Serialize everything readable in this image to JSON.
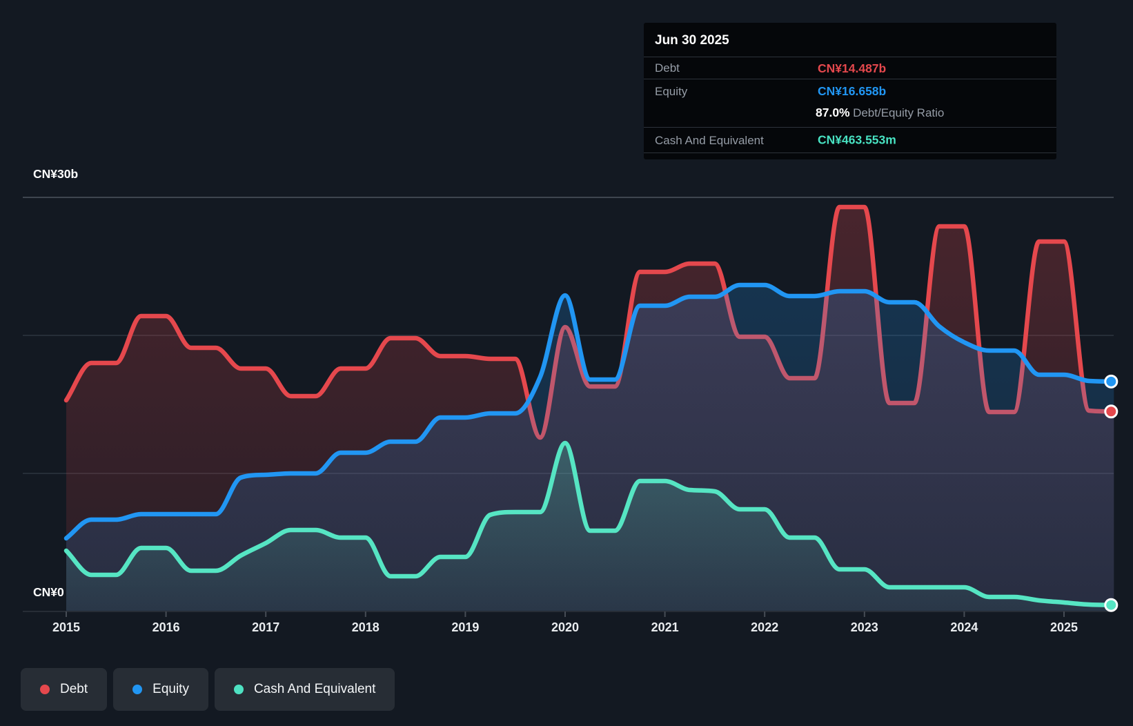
{
  "tooltip": {
    "date": "Jun 30 2025",
    "debt_label": "Debt",
    "debt_value": "CN¥14.487b",
    "equity_label": "Equity",
    "equity_value": "CN¥16.658b",
    "ratio_value": "87.0%",
    "ratio_label": "Debt/Equity Ratio",
    "cash_label": "Cash And Equivalent",
    "cash_value": "CN¥463.553m"
  },
  "y_axis": {
    "top_label": "CN¥30b",
    "bottom_label": "CN¥0",
    "unit": "CN¥ billions",
    "gridline_values": [
      30,
      20,
      10
    ]
  },
  "x_axis": {
    "ticks": [
      2015,
      2016,
      2017,
      2018,
      2019,
      2020,
      2021,
      2022,
      2023,
      2024,
      2025
    ]
  },
  "legend": [
    {
      "label": "Debt",
      "color": "#e5484d"
    },
    {
      "label": "Equity",
      "color": "#2196f3"
    },
    {
      "label": "Cash And Equivalent",
      "color": "#4ee1c2"
    }
  ],
  "colors": {
    "background": "#131922",
    "grid_major": "#333b45",
    "grid_top": "#4d545e",
    "axis_line": "#272d36",
    "tick": "#464c55",
    "x_label": "#e9ecef",
    "debt_line": "#e5484d",
    "equity_line": "#2196f3",
    "cash_line": "#56e5c3",
    "debt_value_text": "#e5484d",
    "equity_value_text": "#2196f3",
    "cash_value_text": "#48e2c2"
  },
  "chart_data": {
    "type": "area",
    "title": "Debt to Equity History (CN¥ billions, quarterly)",
    "x_start": 2015.0,
    "x_step": 0.25,
    "x_end": 2025.5,
    "last_point_date": "Jun 30 2025",
    "ylim": [
      0,
      30
    ],
    "grid": true,
    "legend_position": "bottom-left",
    "series": [
      {
        "name": "Debt",
        "color": "#e5484d",
        "last_value_label": "CN¥14.487b",
        "values": [
          15.3,
          18.0,
          18.0,
          21.4,
          21.4,
          19.1,
          19.1,
          17.6,
          17.6,
          15.6,
          15.6,
          17.6,
          17.6,
          19.8,
          19.8,
          18.5,
          18.5,
          18.3,
          18.3,
          12.6,
          20.6,
          16.3,
          16.3,
          24.6,
          24.6,
          25.2,
          25.2,
          19.9,
          19.9,
          16.9,
          16.9,
          29.3,
          29.3,
          15.1,
          15.1,
          27.9,
          27.9,
          14.45,
          14.45,
          26.8,
          26.8,
          14.55,
          14.487
        ]
      },
      {
        "name": "Equity",
        "color": "#2196f3",
        "last_value_label": "CN¥16.658b",
        "values": [
          5.3,
          6.65,
          6.65,
          7.05,
          7.05,
          7.05,
          7.05,
          9.7,
          9.9,
          10.0,
          10.0,
          11.5,
          11.5,
          12.3,
          12.3,
          14.05,
          14.05,
          14.35,
          14.35,
          17.0,
          22.9,
          16.8,
          16.8,
          22.15,
          22.15,
          22.8,
          22.8,
          23.65,
          23.65,
          22.85,
          22.85,
          23.2,
          23.2,
          22.4,
          22.4,
          20.65,
          19.5,
          18.9,
          18.9,
          17.15,
          17.15,
          16.7,
          16.658
        ]
      },
      {
        "name": "Cash And Equivalent",
        "color": "#56e5c3",
        "last_value_label": "CN¥463.553m",
        "values": [
          4.4,
          2.65,
          2.65,
          4.6,
          4.6,
          2.95,
          2.95,
          4.05,
          4.95,
          5.9,
          5.9,
          5.35,
          5.35,
          2.55,
          2.55,
          3.95,
          3.95,
          7.0,
          7.2,
          7.2,
          12.2,
          5.85,
          5.85,
          9.45,
          9.45,
          8.8,
          8.7,
          7.4,
          7.4,
          5.35,
          5.35,
          3.05,
          3.05,
          1.75,
          1.75,
          1.75,
          1.75,
          1.05,
          1.05,
          0.8,
          0.65,
          0.5,
          0.4636
        ]
      }
    ]
  }
}
